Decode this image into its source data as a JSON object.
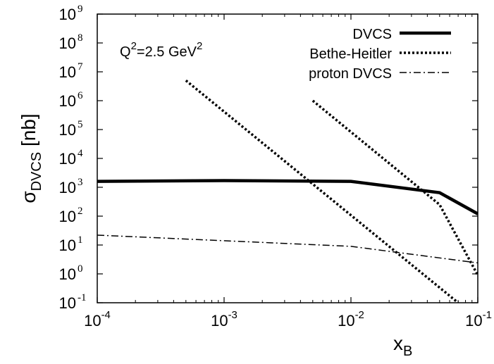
{
  "chart_data": {
    "type": "line",
    "title": "",
    "xlabel": {
      "base": "x",
      "sub": "B"
    },
    "ylabel": {
      "base": "σ",
      "sub": "DVCS",
      "suffix": " [nb]"
    },
    "xscale": "log",
    "yscale": "log",
    "xlim": [
      0.0001,
      0.1
    ],
    "ylim": [
      0.1,
      1000000000
    ],
    "grid": false,
    "legend_position": "top-right",
    "x_ticks": [
      {
        "value": 0.0001,
        "base": "10",
        "exp": "-4"
      },
      {
        "value": 0.001,
        "base": "10",
        "exp": "-3"
      },
      {
        "value": 0.01,
        "base": "10",
        "exp": "-2"
      },
      {
        "value": 0.1,
        "base": "10",
        "exp": "-1"
      }
    ],
    "y_ticks": [
      {
        "value": 0.1,
        "base": "10",
        "exp": "-1"
      },
      {
        "value": 1,
        "base": "10",
        "exp": "0"
      },
      {
        "value": 10,
        "base": "10",
        "exp": "1"
      },
      {
        "value": 100,
        "base": "10",
        "exp": "2"
      },
      {
        "value": 1000,
        "base": "10",
        "exp": "3"
      },
      {
        "value": 10000,
        "base": "10",
        "exp": "4"
      },
      {
        "value": 100000,
        "base": "10",
        "exp": "5"
      },
      {
        "value": 1000000,
        "base": "10",
        "exp": "6"
      },
      {
        "value": 10000000,
        "base": "10",
        "exp": "7"
      },
      {
        "value": 100000000,
        "base": "10",
        "exp": "8"
      },
      {
        "value": 1000000000,
        "base": "10",
        "exp": "9"
      }
    ],
    "annotation": {
      "q": "Q",
      "q_exp": "2",
      "value": "=2.5 GeV",
      "unit_exp": "2"
    },
    "series": [
      {
        "name": "DVCS",
        "style": "solid-thick",
        "points": [
          [
            0.0001,
            1600
          ],
          [
            0.001,
            1700
          ],
          [
            0.01,
            1600
          ],
          [
            0.05,
            650
          ],
          [
            0.1,
            120
          ]
        ]
      },
      {
        "name": "Bethe-Heitler",
        "style": "dotted",
        "segments": [
          [
            [
              0.0005,
              5000000
            ],
            [
              0.07,
              0.1
            ]
          ],
          [
            [
              0.005,
              1000000
            ],
            [
              0.05,
              250
            ],
            [
              0.1,
              0.9
            ]
          ]
        ]
      },
      {
        "name": "proton DVCS",
        "style": "dash-dot",
        "points": [
          [
            0.0001,
            22
          ],
          [
            0.01,
            9
          ],
          [
            0.1,
            2.4
          ]
        ]
      }
    ],
    "colors": {
      "line": "#000000",
      "background": "#ffffff"
    }
  }
}
